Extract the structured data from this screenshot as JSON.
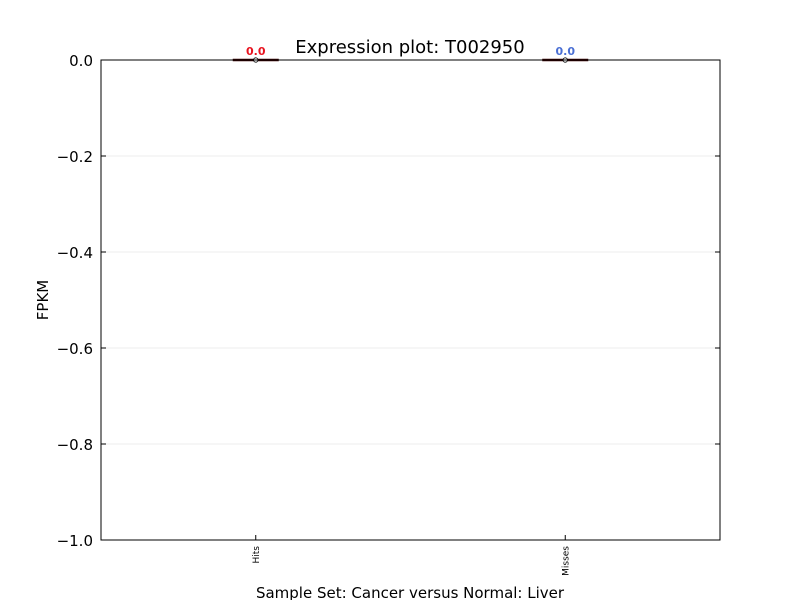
{
  "chart_data": {
    "type": "box",
    "title": "Expression plot: T002950",
    "xlabel": "Sample Set: Cancer versus Normal: Liver",
    "ylabel": "FPKM",
    "ylim": [
      -1.0,
      0.0
    ],
    "yticks": [
      {
        "value": 0.0,
        "label": "0.0"
      },
      {
        "value": -0.2,
        "label": "−0.2"
      },
      {
        "value": -0.4,
        "label": "−0.4"
      },
      {
        "value": -0.6,
        "label": "−0.6"
      },
      {
        "value": -0.8,
        "label": "−0.8"
      },
      {
        "value": -1.0,
        "label": "−1.0"
      }
    ],
    "grid": true,
    "categories": [
      "Hits",
      "Misses"
    ],
    "groups": [
      {
        "category": "Hits",
        "median": 0.0,
        "median_label": "0.0",
        "label_color": "#e8131f",
        "values": [
          0.0
        ]
      },
      {
        "category": "Misses",
        "median": 0.0,
        "median_label": "0.0",
        "label_color": "#4a6fd4",
        "values": [
          0.0
        ]
      }
    ]
  }
}
